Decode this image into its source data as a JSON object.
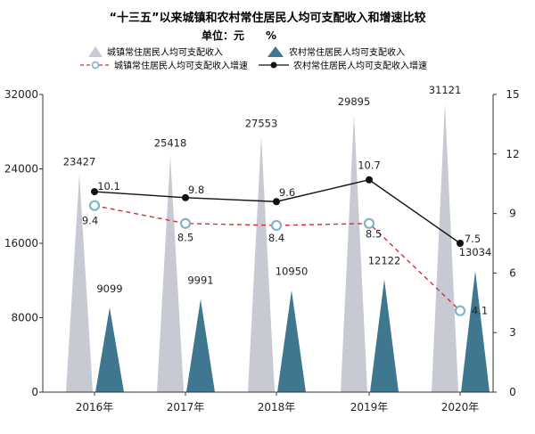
{
  "chart_data": {
    "type": "bar+line",
    "title": "“十三五”以来城镇和农村常住居民人均可支配收入和增速比较",
    "subtitle": "单位：元　　%",
    "categories": [
      "2016年",
      "2017年",
      "2018年",
      "2019年",
      "2020年"
    ],
    "bar_series": [
      {
        "name": "城镇常住居民人均可支配收入",
        "values": [
          23427,
          25418,
          27553,
          29895,
          31121
        ],
        "color": "#c8cad3"
      },
      {
        "name": "农村常住居民人均可支配收入",
        "values": [
          9099,
          9991,
          10950,
          12122,
          13034
        ],
        "color": "#3f7790"
      }
    ],
    "line_series": [
      {
        "name": "城镇常住居民人均可支配收入增速",
        "values": [
          9.4,
          8.5,
          8.4,
          8.5,
          4.1
        ],
        "color": "#d62f2f",
        "style": "dashed",
        "marker": "hollow-circle"
      },
      {
        "name": "农村常住居民人均可支配收入增速",
        "values": [
          10.1,
          9.8,
          9.6,
          10.7,
          7.5
        ],
        "color": "#111111",
        "style": "solid",
        "marker": "filled-circle"
      }
    ],
    "y_left": {
      "min": 0,
      "max": 32000,
      "ticks": [
        0,
        8000,
        16000,
        24000,
        32000
      ]
    },
    "y_right": {
      "min": 0,
      "max": 15,
      "ticks": [
        0,
        3,
        6,
        9,
        12,
        15
      ]
    },
    "grid": false,
    "legend_position": "top"
  }
}
